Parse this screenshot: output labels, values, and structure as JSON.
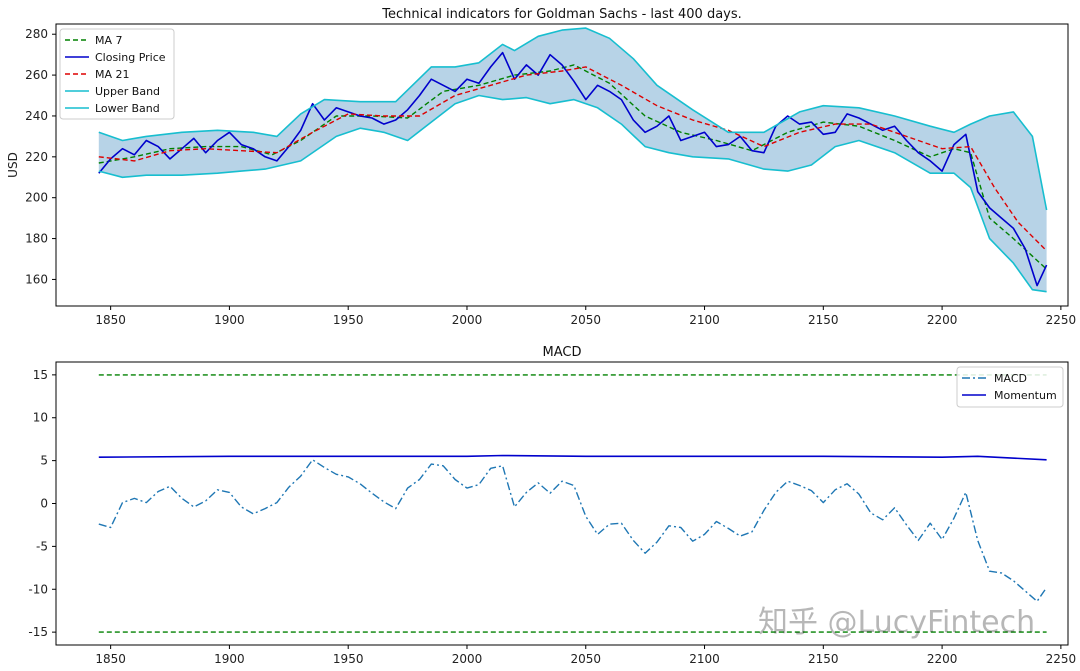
{
  "chart_data": [
    {
      "type": "line",
      "title": "Technical indicators for Goldman Sachs - last 400 days.",
      "xlabel": "",
      "ylabel": "USD",
      "xlim": [
        1827,
        2253
      ],
      "ylim": [
        147,
        285
      ],
      "xticks": [
        1850,
        1900,
        1950,
        2000,
        2050,
        2100,
        2150,
        2200,
        2250
      ],
      "yticks": [
        160,
        180,
        200,
        220,
        240,
        260,
        280
      ],
      "legend_position": "top-left",
      "grid": false,
      "fill_between": [
        "Upper Band",
        "Lower Band"
      ],
      "series": [
        {
          "name": "MA 7",
          "style": "dashed",
          "color": "#008000",
          "x": [
            1845,
            1860,
            1875,
            1890,
            1905,
            1918,
            1930,
            1945,
            1960,
            1975,
            1990,
            2005,
            2020,
            2035,
            2045,
            2060,
            2075,
            2090,
            2105,
            2120,
            2135,
            2150,
            2165,
            2180,
            2195,
            2205,
            2212,
            2220,
            2230,
            2244
          ],
          "values": [
            217,
            220,
            224,
            225,
            225,
            221,
            228,
            240,
            240,
            239,
            252,
            255,
            260,
            262,
            265,
            256,
            240,
            232,
            228,
            223,
            232,
            237,
            235,
            228,
            220,
            224,
            222,
            190,
            180,
            165
          ]
        },
        {
          "name": "Closing Price",
          "style": "solid",
          "color": "#0000cc",
          "x": [
            1845,
            1850,
            1855,
            1860,
            1865,
            1870,
            1875,
            1880,
            1885,
            1890,
            1895,
            1900,
            1905,
            1910,
            1915,
            1920,
            1925,
            1930,
            1935,
            1940,
            1945,
            1950,
            1955,
            1960,
            1965,
            1970,
            1975,
            1980,
            1985,
            1990,
            1995,
            2000,
            2005,
            2010,
            2015,
            2020,
            2025,
            2030,
            2035,
            2040,
            2045,
            2050,
            2055,
            2060,
            2065,
            2070,
            2075,
            2080,
            2085,
            2090,
            2095,
            2100,
            2105,
            2110,
            2115,
            2120,
            2125,
            2130,
            2135,
            2140,
            2145,
            2150,
            2155,
            2160,
            2165,
            2170,
            2175,
            2180,
            2185,
            2190,
            2195,
            2200,
            2205,
            2210,
            2215,
            2220,
            2225,
            2230,
            2235,
            2240,
            2244
          ],
          "values": [
            212,
            219,
            224,
            221,
            228,
            225,
            219,
            224,
            229,
            222,
            228,
            232,
            226,
            224,
            220,
            218,
            225,
            233,
            246,
            238,
            244,
            242,
            240,
            239,
            236,
            238,
            243,
            250,
            258,
            255,
            252,
            258,
            256,
            264,
            271,
            258,
            265,
            260,
            270,
            265,
            257,
            248,
            255,
            252,
            248,
            238,
            232,
            235,
            240,
            228,
            230,
            232,
            225,
            226,
            230,
            223,
            222,
            235,
            240,
            236,
            237,
            231,
            232,
            241,
            239,
            236,
            233,
            235,
            228,
            222,
            218,
            213,
            226,
            231,
            203,
            195,
            190,
            185,
            175,
            157,
            167
          ]
        },
        {
          "name": "MA 21",
          "style": "dashed",
          "color": "#dd0000",
          "x": [
            1845,
            1860,
            1875,
            1890,
            1905,
            1920,
            1935,
            1950,
            1965,
            1980,
            1995,
            2010,
            2025,
            2040,
            2050,
            2065,
            2080,
            2095,
            2110,
            2125,
            2140,
            2155,
            2170,
            2185,
            2200,
            2212,
            2222,
            2232,
            2244
          ],
          "values": [
            220,
            218,
            223,
            224,
            223,
            222,
            232,
            241,
            240,
            240,
            250,
            255,
            260,
            262,
            264,
            255,
            245,
            238,
            233,
            225,
            232,
            236,
            236,
            230,
            224,
            225,
            205,
            188,
            174
          ]
        },
        {
          "name": "Upper Band",
          "style": "solid",
          "color": "#17becf",
          "x": [
            1845,
            1855,
            1865,
            1880,
            1895,
            1910,
            1920,
            1930,
            1940,
            1955,
            1970,
            1985,
            1995,
            2005,
            2015,
            2020,
            2030,
            2040,
            2050,
            2060,
            2070,
            2080,
            2095,
            2110,
            2125,
            2140,
            2150,
            2165,
            2180,
            2195,
            2205,
            2212,
            2220,
            2230,
            2238,
            2244
          ],
          "values": [
            232,
            228,
            230,
            232,
            233,
            232,
            230,
            241,
            248,
            247,
            247,
            264,
            264,
            266,
            275,
            272,
            279,
            282,
            283,
            278,
            268,
            255,
            243,
            232,
            232,
            242,
            245,
            244,
            240,
            235,
            232,
            236,
            240,
            242,
            230,
            194
          ]
        },
        {
          "name": "Lower Band",
          "style": "solid",
          "color": "#17becf",
          "x": [
            1845,
            1855,
            1865,
            1880,
            1895,
            1905,
            1915,
            1930,
            1945,
            1955,
            1965,
            1975,
            1985,
            1995,
            2005,
            2015,
            2025,
            2035,
            2045,
            2055,
            2065,
            2075,
            2085,
            2095,
            2110,
            2125,
            2135,
            2145,
            2155,
            2165,
            2180,
            2195,
            2205,
            2212,
            2220,
            2230,
            2238,
            2244
          ],
          "values": [
            213,
            210,
            211,
            211,
            212,
            213,
            214,
            218,
            230,
            234,
            232,
            228,
            237,
            246,
            250,
            248,
            249,
            246,
            248,
            244,
            236,
            225,
            222,
            220,
            219,
            214,
            213,
            216,
            225,
            228,
            222,
            212,
            212,
            205,
            180,
            168,
            155,
            154
          ]
        }
      ]
    },
    {
      "type": "line",
      "title": "MACD",
      "xlabel": "",
      "ylabel": "",
      "xlim": [
        1827,
        2253
      ],
      "ylim": [
        -16.5,
        16.5
      ],
      "xticks": [
        1850,
        1900,
        1950,
        2000,
        2050,
        2100,
        2150,
        2200,
        2250
      ],
      "yticks": [
        -15,
        -10,
        -5,
        0,
        5,
        10,
        15
      ],
      "legend_position": "top-right",
      "grid": false,
      "series": [
        {
          "name": "MACD",
          "style": "dashdot",
          "color": "#1f77b4",
          "x": [
            1845,
            1850,
            1855,
            1860,
            1865,
            1870,
            1875,
            1880,
            1885,
            1890,
            1895,
            1900,
            1905,
            1910,
            1915,
            1920,
            1925,
            1930,
            1935,
            1940,
            1945,
            1950,
            1955,
            1960,
            1965,
            1970,
            1975,
            1980,
            1985,
            1990,
            1995,
            2000,
            2005,
            2010,
            2015,
            2020,
            2025,
            2030,
            2035,
            2040,
            2045,
            2050,
            2055,
            2060,
            2065,
            2070,
            2075,
            2080,
            2085,
            2090,
            2095,
            2100,
            2105,
            2110,
            2115,
            2120,
            2125,
            2130,
            2135,
            2140,
            2145,
            2150,
            2155,
            2160,
            2165,
            2170,
            2175,
            2180,
            2185,
            2190,
            2195,
            2200,
            2205,
            2210,
            2215,
            2220,
            2225,
            2230,
            2235,
            2240,
            2244
          ],
          "values": [
            -2.4,
            -2.8,
            0.1,
            0.6,
            0.1,
            1.4,
            2.0,
            0.6,
            -0.4,
            0.3,
            1.6,
            1.3,
            -0.4,
            -1.2,
            -0.6,
            0.1,
            1.9,
            3.2,
            5.1,
            4.2,
            3.4,
            3.1,
            2.3,
            1.2,
            0.2,
            -0.6,
            1.8,
            2.8,
            4.6,
            4.4,
            2.8,
            1.8,
            2.2,
            4.1,
            4.4,
            -0.4,
            1.3,
            2.4,
            1.2,
            2.6,
            2.1,
            -1.5,
            -3.6,
            -2.4,
            -2.3,
            -4.3,
            -5.8,
            -4.5,
            -2.6,
            -2.8,
            -4.4,
            -3.6,
            -2.1,
            -2.9,
            -3.8,
            -3.3,
            -0.8,
            1.3,
            2.6,
            2.1,
            1.5,
            0.1,
            1.6,
            2.3,
            1.1,
            -1.1,
            -1.9,
            -0.5,
            -2.5,
            -4.3,
            -2.3,
            -4.2,
            -1.7,
            1.3,
            -4.3,
            -7.9,
            -8.1,
            -9.0,
            -10.2,
            -11.4,
            -9.8
          ]
        },
        {
          "name": "Momentum",
          "style": "solid",
          "color": "#0000cc",
          "x": [
            1845,
            1900,
            1950,
            2000,
            2015,
            2050,
            2100,
            2150,
            2200,
            2215,
            2244
          ],
          "values": [
            5.4,
            5.5,
            5.5,
            5.5,
            5.6,
            5.5,
            5.5,
            5.5,
            5.4,
            5.5,
            5.1
          ]
        },
        {
          "style": "dashed",
          "color": "#008000",
          "x": [
            1845,
            2244
          ],
          "values": [
            15,
            15
          ]
        },
        {
          "style": "dashed",
          "color": "#008000",
          "x": [
            1845,
            2244
          ],
          "values": [
            -15,
            -15
          ]
        }
      ]
    }
  ],
  "watermark": {
    "text": "知乎 @LucyFintech"
  }
}
